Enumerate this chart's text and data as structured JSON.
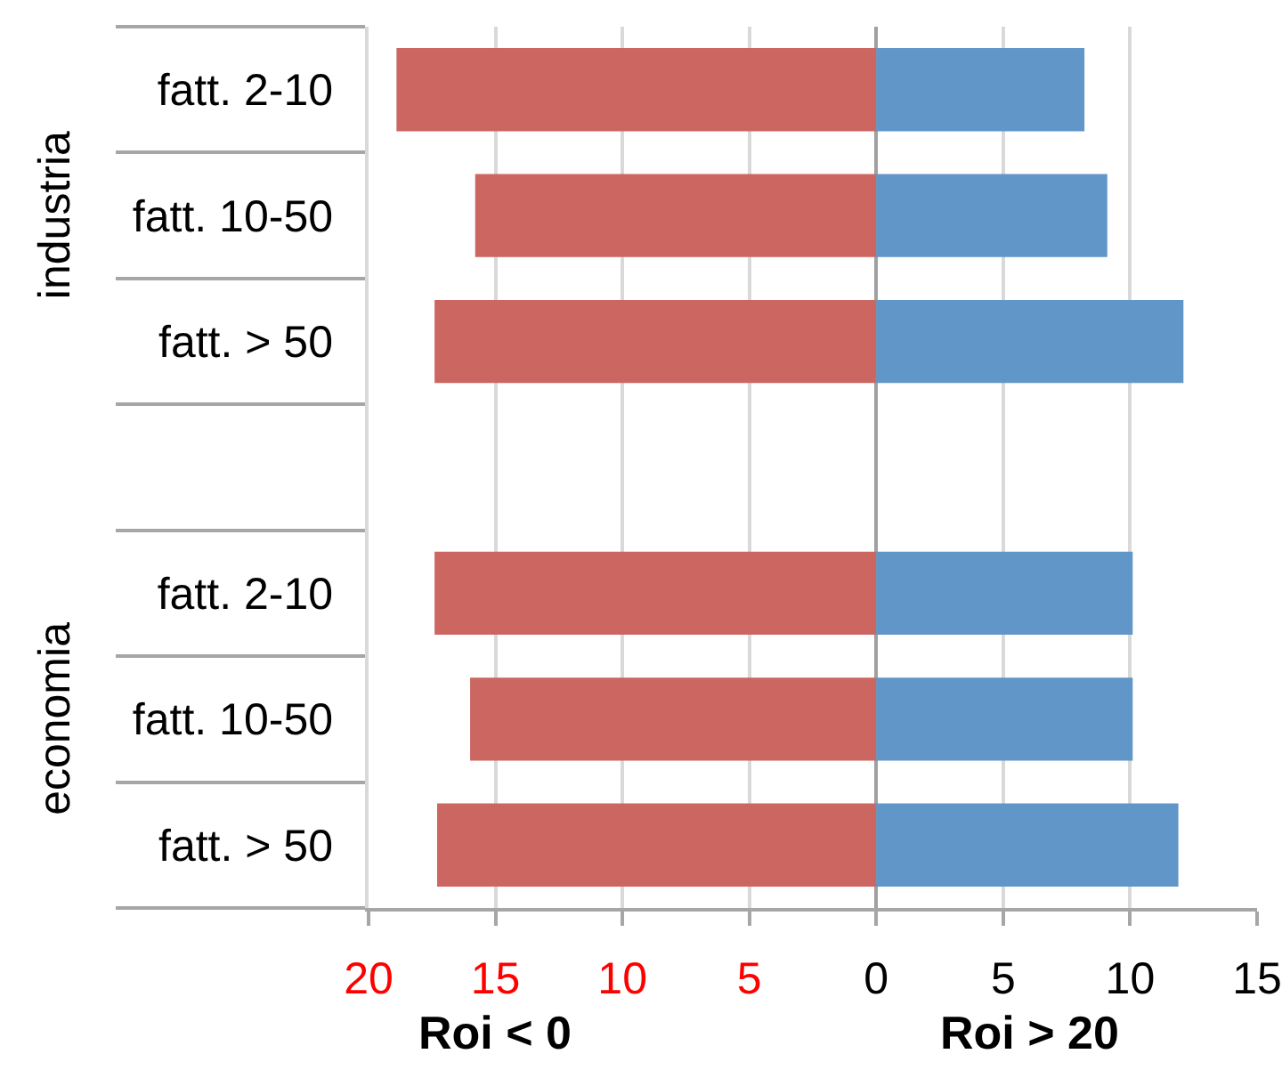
{
  "chart_data": [
    {
      "type": "bar",
      "orientation": "horizontal",
      "stacked": true,
      "ylabel": "industria",
      "categories": [
        "fatt. 2-10",
        "fatt. 10-50",
        "fatt. > 50"
      ],
      "series": [
        {
          "color": "#cc6660",
          "values": [
            -18.9,
            -15.8,
            -17.4
          ]
        },
        {
          "color": "#6096c8",
          "values": [
            8.2,
            9.1,
            12.1
          ]
        }
      ],
      "xlim": [
        -20,
        15
      ],
      "xticks": [
        {
          "value": -20,
          "label": null
        },
        {
          "value": -15,
          "label": null
        },
        {
          "value": -10,
          "label": null
        },
        {
          "value": -5,
          "label": null
        },
        {
          "value": 0,
          "label": null
        },
        {
          "value": 5,
          "label": null
        },
        {
          "value": 10,
          "label": null
        },
        {
          "value": 15,
          "label": null
        }
      ],
      "grid": "x",
      "tick_labels": "y"
    },
    {
      "type": "bar",
      "orientation": "horizontal",
      "stacked": true,
      "ylabel": "economia",
      "categories": [
        "fatt. 2-10",
        "fatt. 10-50",
        "fatt. > 50"
      ],
      "series": [
        {
          "name": "Roi < 0",
          "color": "#cc6660",
          "values": [
            -17.4,
            -16.0,
            -17.3
          ]
        },
        {
          "name": "Roi > 20",
          "color": "#6096c8",
          "values": [
            10.1,
            10.1,
            11.9
          ]
        }
      ],
      "xlim": [
        -20,
        15
      ],
      "xticks": [
        {
          "value": -20,
          "label": "20"
        },
        {
          "value": -15,
          "label": "15"
        },
        {
          "value": -10,
          "label": "10"
        },
        {
          "value": -5,
          "label": "5"
        },
        0,
        5,
        10,
        15
      ],
      "grid": "x"
    }
  ]
}
